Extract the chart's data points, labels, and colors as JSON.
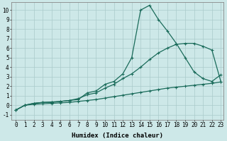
{
  "xlabel": "Humidex (Indice chaleur)",
  "bg_color": "#cde8e8",
  "line_color": "#1a6b5a",
  "grid_color": "#aacaca",
  "xlim": [
    -0.5,
    23.3
  ],
  "ylim": [
    -1.5,
    10.8
  ],
  "xticks": [
    0,
    1,
    2,
    3,
    4,
    5,
    6,
    7,
    8,
    9,
    10,
    11,
    12,
    13,
    14,
    15,
    16,
    17,
    18,
    19,
    20,
    21,
    22,
    23
  ],
  "yticks": [
    -1,
    0,
    1,
    2,
    3,
    4,
    5,
    6,
    7,
    8,
    9,
    10
  ],
  "curve1_x": [
    0,
    1,
    2,
    3,
    4,
    5,
    6,
    7,
    8,
    9,
    10,
    11,
    12,
    13,
    14,
    15,
    16,
    17,
    18,
    19,
    20,
    21,
    22,
    23
  ],
  "curve1_y": [
    -0.5,
    0.0,
    0.2,
    0.3,
    0.3,
    0.4,
    0.5,
    0.6,
    1.3,
    1.5,
    2.2,
    2.5,
    3.3,
    5.0,
    10.0,
    10.5,
    9.0,
    7.8,
    6.5,
    5.0,
    3.5,
    2.8,
    2.5,
    3.2
  ],
  "curve2_x": [
    0,
    1,
    2,
    3,
    4,
    5,
    6,
    7,
    8,
    9,
    10,
    11,
    12,
    13,
    14,
    15,
    16,
    17,
    18,
    19,
    20,
    21,
    22,
    23
  ],
  "curve2_y": [
    -0.5,
    0.0,
    0.2,
    0.3,
    0.35,
    0.4,
    0.5,
    0.7,
    1.1,
    1.3,
    1.8,
    2.2,
    2.8,
    3.3,
    4.0,
    4.8,
    5.5,
    6.0,
    6.4,
    6.5,
    6.5,
    6.2,
    5.8,
    2.5
  ],
  "curve3_x": [
    0,
    1,
    2,
    3,
    4,
    5,
    6,
    7,
    8,
    9,
    10,
    11,
    12,
    13,
    14,
    15,
    16,
    17,
    18,
    19,
    20,
    21,
    22,
    23
  ],
  "curve3_y": [
    -0.5,
    0.0,
    0.1,
    0.15,
    0.2,
    0.25,
    0.3,
    0.4,
    0.5,
    0.6,
    0.75,
    0.9,
    1.05,
    1.2,
    1.35,
    1.5,
    1.65,
    1.8,
    1.9,
    2.0,
    2.1,
    2.2,
    2.3,
    2.45
  ],
  "marker": "+",
  "markersize": 3,
  "linewidth": 0.9,
  "tick_fontsize": 5.5,
  "xlabel_fontsize": 6.5
}
